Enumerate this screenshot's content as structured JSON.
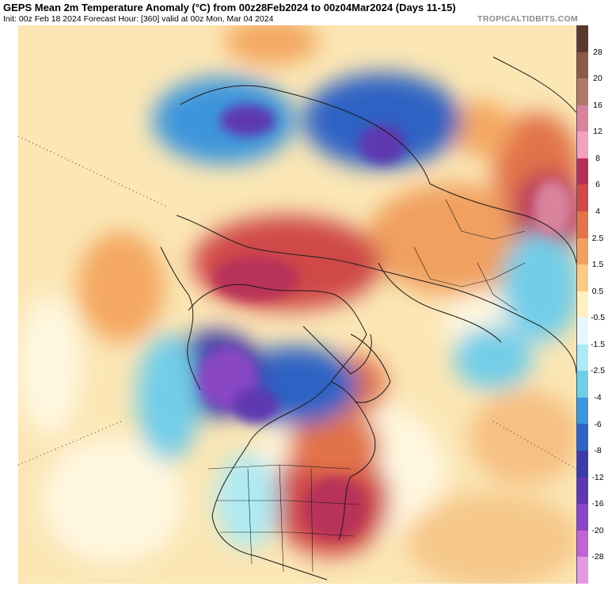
{
  "header": {
    "title": "GEPS Mean 2m Temperature Anomaly (°C) from 00z28Feb2024 to 00z04Mar2024 (Days 11-15)",
    "subtitle": "Init: 00z Feb 18 2024   Forecast Hour: [360]   valid at 00z Mon, Mar 04 2024",
    "brand": "TROPICALTIDBITS.COM"
  },
  "map": {
    "projection": "north-polar-stereographic",
    "variable": "2m temperature anomaly",
    "units": "°C"
  },
  "colorbar": {
    "labels": [
      "28",
      "20",
      "16",
      "12",
      "8",
      "6",
      "4",
      "2.5",
      "1.5",
      "0.5",
      "-0.5",
      "-1.5",
      "-2.5",
      "-4",
      "-6",
      "-8",
      "-12",
      "-16",
      "-20",
      "-28"
    ],
    "colors": [
      "#5a3a2c",
      "#8c5a44",
      "#b07868",
      "#d9849c",
      "#f2a0c0",
      "#b8305a",
      "#cf4a48",
      "#e2734a",
      "#f0a060",
      "#f8cc88",
      "#fdf1c2",
      "#e8f6fb",
      "#aeeaf3",
      "#72cde8",
      "#3c96db",
      "#2e64c4",
      "#3c3ca6",
      "#5e38b0",
      "#8a46c4",
      "#c264d4",
      "#e49ae2"
    ]
  }
}
